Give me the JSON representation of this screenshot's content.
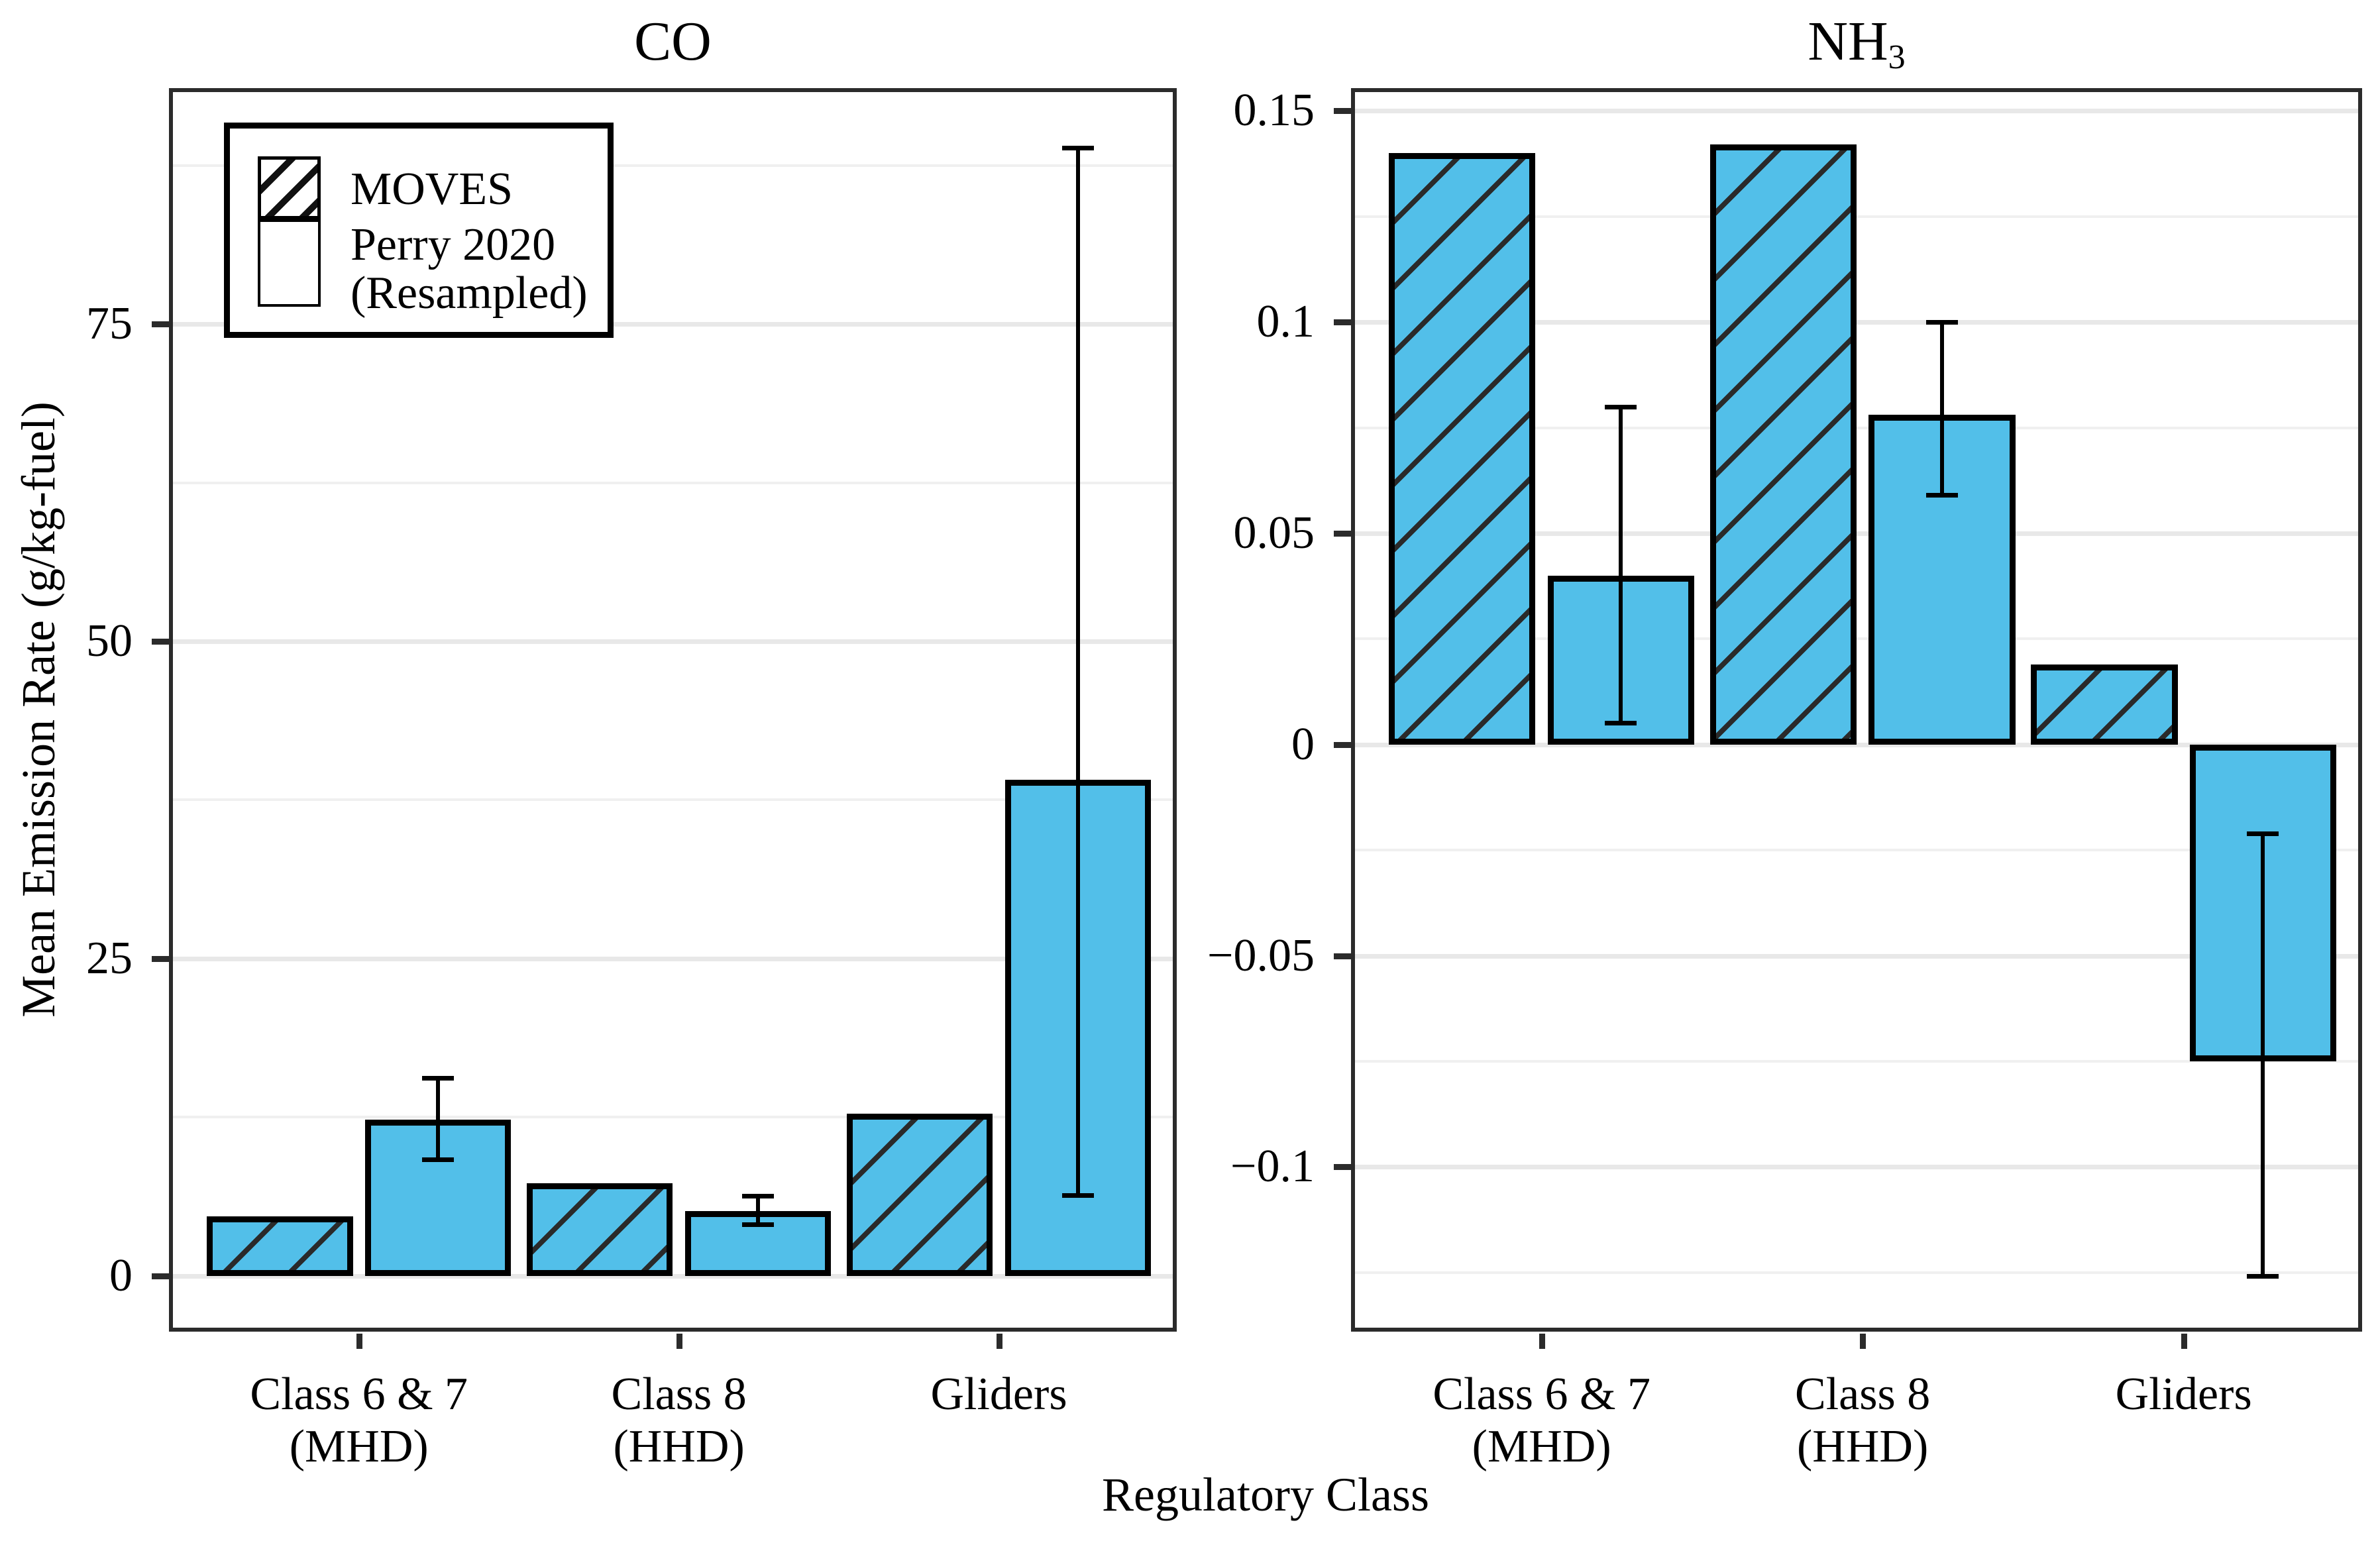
{
  "figure": {
    "y_axis_title": "Mean Emission Rate (g/kg-fuel)",
    "x_axis_title": "Regulatory Class"
  },
  "legend": {
    "moves_label": "MOVES",
    "perry_line1": "Perry 2020",
    "perry_line2": "(Resampled)",
    "items": [
      {
        "label": "MOVES",
        "swatch": "hatched"
      },
      {
        "label": "Perry 2020 (Resampled)",
        "swatch": "plain"
      }
    ]
  },
  "colors": {
    "bar_fill": "#52BFE9",
    "bar_outline": "#000000",
    "hatch_line": "#2a2a2a",
    "gridline_major": "#e8e8e8",
    "gridline_minor": "#f0f0f0",
    "panel_border": "#2b2b2b",
    "tick_mark": "#2b2b2b",
    "text": "#000000",
    "background": "#ffffff"
  },
  "chart_data": [
    {
      "type": "bar",
      "panel": "left",
      "title_main": "CO",
      "title_sub": "",
      "categories": [
        [
          "Class 6 & 7",
          "(MHD)"
        ],
        [
          "Class 8",
          "(HHD)"
        ],
        [
          "Gliders"
        ]
      ],
      "series": [
        {
          "name": "MOVES",
          "style": "hatched",
          "values": [
            4.7,
            7.3,
            12.8
          ]
        },
        {
          "name": "Perry 2020 (Resampled)",
          "style": "solid",
          "values": [
            12.3,
            5.1,
            39.1
          ],
          "error_low": [
            9.1,
            4.0,
            6.3
          ],
          "error_high": [
            15.6,
            6.3,
            88.9
          ]
        }
      ],
      "ylim": [
        -4.4,
        93.6
      ],
      "yticks": [
        {
          "value": 0,
          "label": "0"
        },
        {
          "value": 25,
          "label": "25"
        },
        {
          "value": 50,
          "label": "50"
        },
        {
          "value": 75,
          "label": "75"
        }
      ],
      "minor_gridlines": [
        12.5,
        37.5,
        62.5,
        87.5
      ],
      "grid": true,
      "legend_position": "top-left"
    },
    {
      "type": "bar",
      "panel": "right",
      "title_main": "NH",
      "title_sub": "3",
      "categories": [
        [
          "Class 6 & 7",
          "(MHD)"
        ],
        [
          "Class 8",
          "(HHD)"
        ],
        [
          "Gliders"
        ]
      ],
      "series": [
        {
          "name": "MOVES",
          "style": "hatched",
          "values": [
            0.14,
            0.142,
            0.019
          ]
        },
        {
          "name": "Perry 2020 (Resampled)",
          "style": "solid",
          "values": [
            0.04,
            0.078,
            -0.075
          ],
          "error_low": [
            0.005,
            0.059,
            -0.126
          ],
          "error_high": [
            0.08,
            0.1,
            -0.021
          ]
        }
      ],
      "ylim": [
        -0.139,
        0.1554
      ],
      "yticks": [
        {
          "value": -0.1,
          "label": "−0.1"
        },
        {
          "value": -0.05,
          "label": "−0.05"
        },
        {
          "value": 0,
          "label": "0"
        },
        {
          "value": 0.05,
          "label": "0.05"
        },
        {
          "value": 0.1,
          "label": "0.1"
        },
        {
          "value": 0.15,
          "label": "0.15"
        }
      ],
      "minor_gridlines": [
        -0.125,
        -0.075,
        -0.025,
        0.025,
        0.075,
        0.125
      ],
      "grid": true
    }
  ]
}
